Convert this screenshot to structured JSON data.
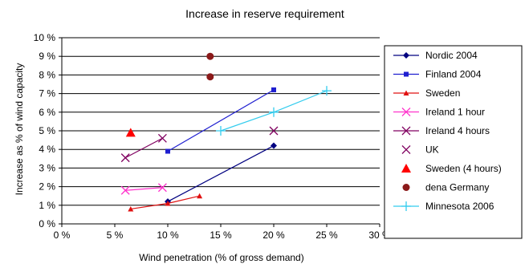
{
  "chart_data": {
    "type": "scatter",
    "title": "Increase in reserve requirement",
    "xlabel": "Wind penetration (% of gross demand)",
    "ylabel": "Increase as % of wind capacity",
    "xlim": [
      0,
      30
    ],
    "ylim": [
      0,
      10
    ],
    "x_ticks": [
      0,
      5,
      10,
      15,
      20,
      25,
      30
    ],
    "y_ticks": [
      0,
      1,
      2,
      3,
      4,
      5,
      6,
      7,
      8,
      9,
      10
    ],
    "x_tick_labels": [
      "0 %",
      "5 %",
      "10 %",
      "15 %",
      "20 %",
      "25 %",
      "30 %"
    ],
    "y_tick_labels": [
      "0 %",
      "1 %",
      "2 %",
      "3 %",
      "4 %",
      "5 %",
      "6 %",
      "7 %",
      "8 %",
      "9 %",
      "10 %"
    ],
    "grid": "horizontal",
    "legend_position": "right",
    "series": [
      {
        "name": "Nordic 2004",
        "color": "#000080",
        "marker": "diamond",
        "line": true,
        "points": [
          [
            10,
            1.2
          ],
          [
            20,
            4.2
          ]
        ]
      },
      {
        "name": "Finland 2004",
        "color": "#1f1fd0",
        "marker": "square",
        "line": true,
        "points": [
          [
            10,
            3.9
          ],
          [
            20,
            7.2
          ]
        ]
      },
      {
        "name": "Sweden",
        "color": "#e01010",
        "marker": "triangle",
        "line": true,
        "points": [
          [
            6.5,
            0.8
          ],
          [
            10,
            1.1
          ],
          [
            13,
            1.5
          ]
        ]
      },
      {
        "name": "Ireland 1 hour",
        "color": "#ff33cc",
        "marker": "x",
        "line": true,
        "points": [
          [
            6,
            1.8
          ],
          [
            9.5,
            1.95
          ]
        ]
      },
      {
        "name": "Ireland 4 hours",
        "color": "#800060",
        "marker": "x",
        "line": true,
        "points": [
          [
            6,
            3.55
          ],
          [
            9.5,
            4.6
          ]
        ]
      },
      {
        "name": "UK",
        "color": "#800060",
        "marker": "x",
        "line": false,
        "points": [
          [
            20,
            5.0
          ]
        ]
      },
      {
        "name": "Sweden (4 hours)",
        "color": "#ff0000",
        "marker": "big-triangle",
        "line": false,
        "points": [
          [
            6.5,
            4.9
          ]
        ]
      },
      {
        "name": "dena Germany",
        "color": "#8b1a1a",
        "marker": "circle",
        "line": false,
        "points": [
          [
            14,
            9.0
          ],
          [
            14,
            7.9
          ]
        ]
      },
      {
        "name": "Minnesota 2006",
        "color": "#33ccee",
        "marker": "plus",
        "line": true,
        "points": [
          [
            15,
            5.0
          ],
          [
            20,
            6.0
          ],
          [
            25,
            7.15
          ]
        ]
      }
    ]
  }
}
